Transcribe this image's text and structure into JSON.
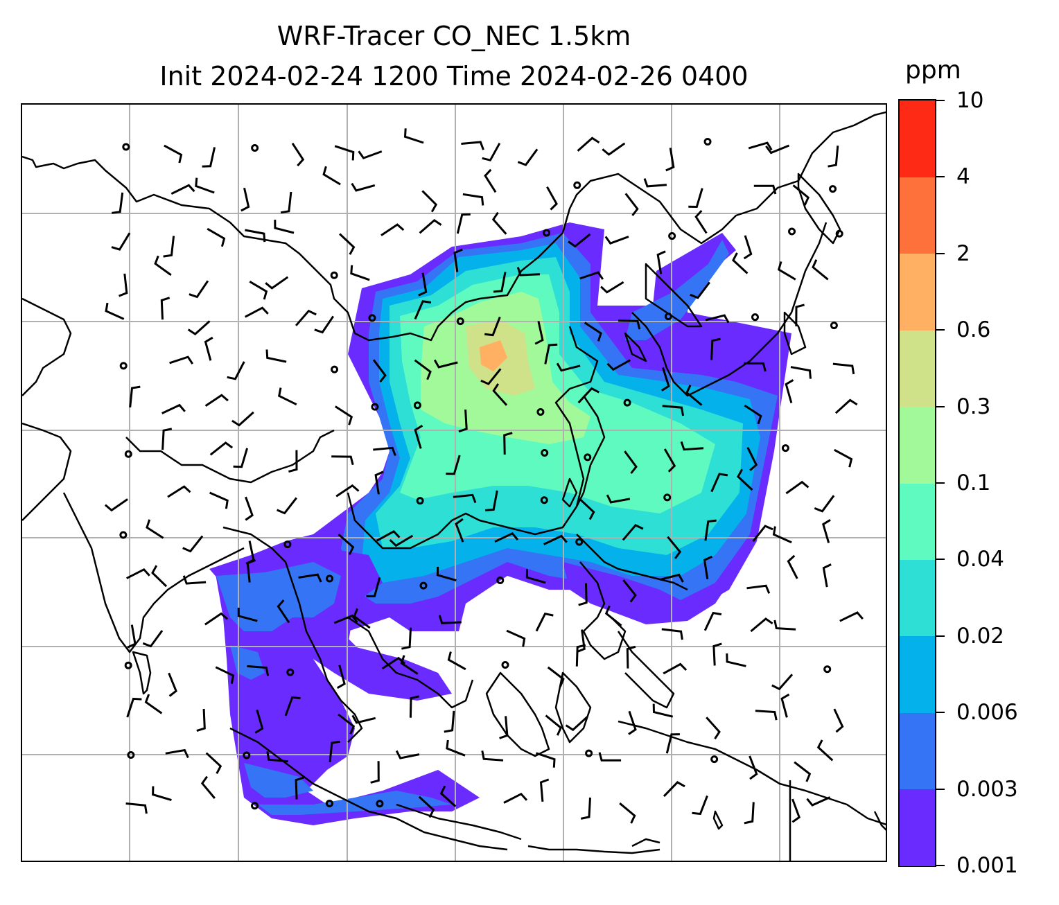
{
  "title": {
    "line1": "WRF-Tracer CO_NEC 1.5km",
    "line2": "Init 2024-02-24 1200 Time 2024-02-26 0400"
  },
  "colorbar": {
    "unit": "ppm",
    "levels": [
      "0.001",
      "0.003",
      "0.006",
      "0.02",
      "0.04",
      "0.1",
      "0.3",
      "0.6",
      "2",
      "4",
      "10"
    ],
    "colors": [
      "#6a2bff",
      "#3575f5",
      "#04b1ea",
      "#2ddfd5",
      "#5ffac0",
      "#a1f99a",
      "#cfe28a",
      "#ffb062",
      "#fe713a",
      "#fe2a16"
    ]
  },
  "map": {
    "gridlines": true,
    "coastline_color": "#000000",
    "grid_color": "#b0b0b0",
    "wind_barb_color": "#000000"
  }
}
